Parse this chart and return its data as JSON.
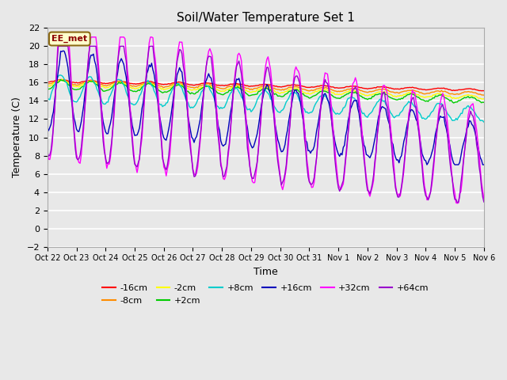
{
  "title": "Soil/Water Temperature Set 1",
  "xlabel": "Time",
  "ylabel": "Temperature (C)",
  "ylim": [
    -2,
    22
  ],
  "annotation": "EE_met",
  "xtick_labels": [
    "Oct 22",
    "Oct 23",
    "Oct 24",
    "Oct 25",
    "Oct 26",
    "Oct 27",
    "Oct 28",
    "Oct 29",
    "Oct 30",
    "Oct 31",
    "Nov 1",
    "Nov 2",
    "Nov 3",
    "Nov 4",
    "Nov 5",
    "Nov 6"
  ],
  "series": [
    {
      "label": "-16cm",
      "color": "#ff0000"
    },
    {
      "label": "-8cm",
      "color": "#ff8c00"
    },
    {
      "label": "-2cm",
      "color": "#ffff00"
    },
    {
      "label": "+2cm",
      "color": "#00cc00"
    },
    {
      "label": "+8cm",
      "color": "#00cccc"
    },
    {
      "label": "+16cm",
      "color": "#0000bb"
    },
    {
      "label": "+32cm",
      "color": "#ff00ff"
    },
    {
      "label": "+64cm",
      "color": "#9900cc"
    }
  ],
  "background_color": "#e8e8e8",
  "plot_bg_color": "#e8e8e8",
  "title_fontsize": 11,
  "figsize": [
    6.4,
    4.8
  ],
  "dpi": 100
}
